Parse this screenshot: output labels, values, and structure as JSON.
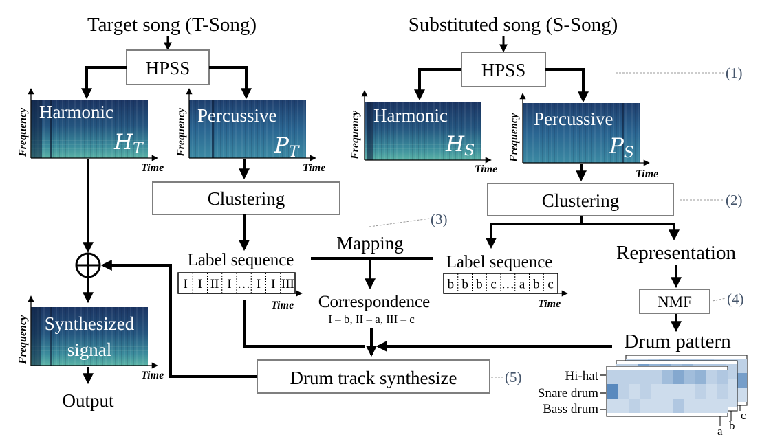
{
  "titles": {
    "target": "Target song (T-Song)",
    "substituted": "Substituted song (S-Song)"
  },
  "boxes": {
    "hpss": "HPSS",
    "clustering": "Clustering",
    "nmf": "NMF",
    "drum_synth": "Drum track synthesize"
  },
  "spectrograms": {
    "harmonic": "Harmonic",
    "percussive": "Percussive",
    "synthesized_line1": "Synthesized",
    "synthesized_line2": "signal",
    "h_t": "H",
    "h_t_sub": "T",
    "p_t": "P",
    "p_t_sub": "T",
    "h_s": "H",
    "h_s_sub": "S",
    "p_s": "P",
    "p_s_sub": "S"
  },
  "axes": {
    "frequency": "Frequency",
    "time": "Time"
  },
  "labels": {
    "mapping": "Mapping",
    "label_sequence": "Label sequence",
    "correspondence": "Correspondence",
    "correspondence_detail": "I – b, II – a, III – c",
    "representation": "Representation",
    "drum_pattern": "Drum pattern",
    "output": "Output"
  },
  "sequences": {
    "target": [
      "I",
      "I",
      "II",
      "I",
      "…",
      "I",
      "I",
      "III"
    ],
    "substituted": [
      "b",
      "b",
      "b",
      "c",
      "…",
      "a",
      "b",
      "c"
    ]
  },
  "drum_rows": [
    "Hi-hat",
    "Snare drum",
    "Bass drum"
  ],
  "layer_labels": [
    "a",
    "b",
    "c"
  ],
  "step_markers": [
    "(1)",
    "(2)",
    "(3)",
    "(4)",
    "(5)"
  ],
  "colors": {
    "spectrogram_dark": "#1d3f6e",
    "spectrogram_mid": "#2f6e96",
    "spectrogram_light": "#4ea5a8",
    "box_border": "#7f7f7f",
    "marker_text": "#44546a",
    "heatmap_light": "#dbe6f2",
    "heatmap_dark": "#4a7fb8"
  }
}
